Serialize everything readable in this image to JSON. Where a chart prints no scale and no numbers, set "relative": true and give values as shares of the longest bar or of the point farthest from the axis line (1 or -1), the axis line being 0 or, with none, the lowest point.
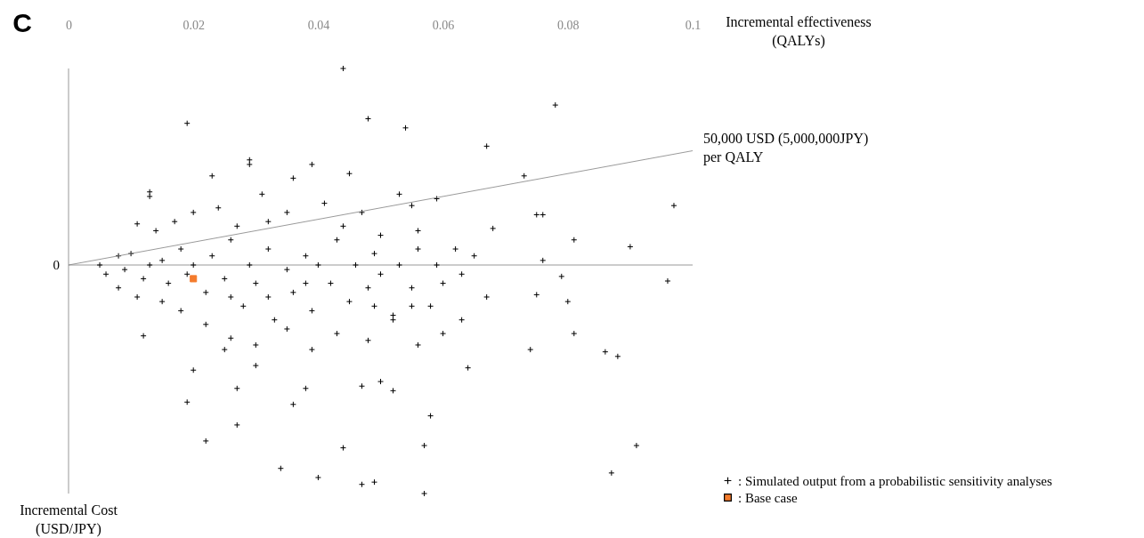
{
  "chart_data": {
    "type": "scatter",
    "relative": true,
    "xlabel": "Incremental effectiveness (QALYs)",
    "ylabel": "Incremental Cost (USD/JPY)",
    "xlim": [
      0,
      0.1
    ],
    "xticks": [
      0,
      0.02,
      0.04,
      0.06,
      0.08,
      0.1
    ],
    "tick_labels": "x",
    "grid": false,
    "legend": "bottom right",
    "annotations": [
      "C",
      {
        "text": "0",
        "x": 0,
        "y": 0
      }
    ],
    "series": [
      {
        "name": ": Simulated output from a probabilistic sensitivity analyses",
        "type": "scatter",
        "marker": "cross",
        "color": "#000000",
        "x": [
          0.044,
          0.019,
          0.048,
          0.054,
          0.078,
          0.067,
          0.029,
          0.029,
          0.039,
          0.045,
          0.073,
          0.036,
          0.023,
          0.013,
          0.013,
          0.031,
          0.053,
          0.059,
          0.097,
          0.075,
          0.076,
          0.055,
          0.047,
          0.011,
          0.068,
          0.081,
          0.09,
          0.076,
          0.079,
          0.096,
          0.067,
          0.075,
          0.08,
          0.081,
          0.074,
          0.086,
          0.088,
          0.064,
          0.012,
          0.02,
          0.019,
          0.022,
          0.027,
          0.034,
          0.04,
          0.044,
          0.047,
          0.049,
          0.057,
          0.058,
          0.057,
          0.091,
          0.087,
          0.036,
          0.052,
          0.047,
          0.05,
          0.038,
          0.027,
          0.03,
          0.025,
          0.005,
          0.006,
          0.008,
          0.009,
          0.01,
          0.012,
          0.013,
          0.015,
          0.016,
          0.018,
          0.019,
          0.02,
          0.022,
          0.023,
          0.025,
          0.026,
          0.028,
          0.029,
          0.03,
          0.032,
          0.033,
          0.035,
          0.036,
          0.038,
          0.039,
          0.04,
          0.042,
          0.043,
          0.045,
          0.046,
          0.048,
          0.049,
          0.05,
          0.052,
          0.053,
          0.055,
          0.056,
          0.058,
          0.059,
          0.06,
          0.062,
          0.063,
          0.065,
          0.014,
          0.017,
          0.02,
          0.024,
          0.027,
          0.032,
          0.035,
          0.041,
          0.044,
          0.05,
          0.056,
          0.018,
          0.022,
          0.026,
          0.03,
          0.035,
          0.039,
          0.043,
          0.048,
          0.052,
          0.056,
          0.06,
          0.063,
          0.015,
          0.011,
          0.008,
          0.026,
          0.032,
          0.038,
          0.049,
          0.055
        ],
        "values": [
          0.86,
          0.62,
          0.64,
          0.6,
          0.7,
          0.52,
          0.46,
          0.44,
          0.44,
          0.4,
          0.39,
          0.38,
          0.39,
          0.32,
          0.3,
          0.31,
          0.31,
          0.29,
          0.26,
          0.22,
          0.22,
          0.26,
          0.23,
          0.18,
          0.16,
          0.11,
          0.08,
          0.02,
          -0.05,
          -0.07,
          -0.14,
          -0.13,
          -0.16,
          -0.3,
          -0.37,
          -0.38,
          -0.4,
          -0.45,
          -0.31,
          -0.46,
          -0.6,
          -0.77,
          -0.7,
          -0.89,
          -0.93,
          -0.8,
          -0.96,
          -0.95,
          -1.0,
          -0.66,
          -0.79,
          -0.79,
          -0.91,
          -0.61,
          -0.55,
          -0.53,
          -0.51,
          -0.54,
          -0.54,
          -0.44,
          -0.37,
          0.0,
          -0.04,
          0.04,
          -0.02,
          0.05,
          -0.06,
          0.0,
          0.02,
          -0.08,
          0.07,
          -0.04,
          0.0,
          -0.12,
          0.04,
          -0.06,
          0.11,
          -0.18,
          0.0,
          -0.08,
          0.07,
          -0.24,
          -0.02,
          -0.12,
          0.04,
          -0.2,
          0.0,
          -0.08,
          0.11,
          -0.16,
          0.0,
          -0.1,
          0.05,
          -0.04,
          -0.22,
          0.0,
          -0.1,
          0.07,
          -0.18,
          0.0,
          -0.08,
          0.07,
          -0.04,
          0.04,
          0.15,
          0.19,
          0.23,
          0.25,
          0.17,
          0.19,
          0.23,
          0.27,
          0.17,
          0.13,
          0.15,
          -0.2,
          -0.26,
          -0.32,
          -0.35,
          -0.28,
          -0.37,
          -0.3,
          -0.33,
          -0.24,
          -0.35,
          -0.3,
          -0.24,
          -0.16,
          -0.14,
          -0.1,
          -0.14,
          -0.14,
          -0.08,
          -0.18,
          -0.18
        ]
      },
      {
        "name": ": Base case",
        "type": "scatter",
        "marker": "square",
        "color": "#f47b2c",
        "x": [
          0.02
        ],
        "values": [
          -0.06
        ]
      },
      {
        "name": "50,000 USD (5,000,000JPY) per QALY",
        "type": "line",
        "color": "#808080",
        "x": [
          0,
          0.1
        ],
        "values": [
          0,
          0.5
        ]
      }
    ]
  }
}
